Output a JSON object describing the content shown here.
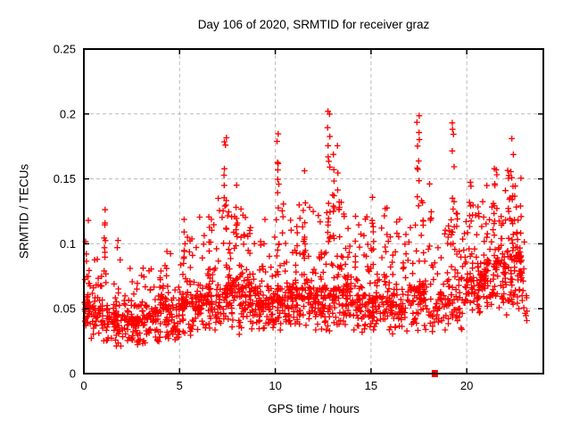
{
  "chart_data": {
    "type": "scatter",
    "title": "Day 106 of 2020, SRMTID for receiver graz",
    "xlabel": "GPS time / hours",
    "ylabel": "SRMTID / TECUs",
    "xlim": [
      0,
      24
    ],
    "ylim": [
      0,
      0.25
    ],
    "xticks": [
      {
        "v": 0,
        "label": "0"
      },
      {
        "v": 5,
        "label": "5"
      },
      {
        "v": 10,
        "label": "10"
      },
      {
        "v": 15,
        "label": "15"
      },
      {
        "v": 20,
        "label": "20"
      }
    ],
    "yticks": [
      {
        "v": 0,
        "label": "0"
      },
      {
        "v": 0.05,
        "label": "0.05"
      },
      {
        "v": 0.1,
        "label": "0.1"
      },
      {
        "v": 0.15,
        "label": "0.15"
      },
      {
        "v": 0.2,
        "label": "0.2"
      },
      {
        "v": 0.25,
        "label": "0.25"
      }
    ],
    "grid": true,
    "legend": "none",
    "marker": "plus",
    "marker_color": "#ff0000",
    "grid_color": "#bbbbbb",
    "border_color": "#000000",
    "background_color": "#ffffff",
    "seed": 2020106,
    "bands": [
      [
        0,
        0.3,
        45,
        0.03,
        0.055,
        0.118
      ],
      [
        0.3,
        1,
        55,
        0.025,
        0.05,
        0.09
      ],
      [
        1,
        2,
        75,
        0.02,
        0.045,
        0.105
      ],
      [
        2,
        3,
        80,
        0.02,
        0.042,
        0.085
      ],
      [
        3,
        4,
        85,
        0.02,
        0.048,
        0.09
      ],
      [
        4,
        5,
        80,
        0.025,
        0.052,
        0.1
      ],
      [
        5,
        6,
        85,
        0.028,
        0.055,
        0.11
      ],
      [
        6,
        7,
        85,
        0.032,
        0.06,
        0.122
      ],
      [
        7,
        8,
        90,
        0.035,
        0.065,
        0.14
      ],
      [
        8,
        9,
        90,
        0.03,
        0.065,
        0.133
      ],
      [
        9,
        10,
        85,
        0.028,
        0.058,
        0.12
      ],
      [
        10,
        11,
        90,
        0.032,
        0.065,
        0.135
      ],
      [
        11,
        12,
        90,
        0.035,
        0.065,
        0.13
      ],
      [
        12,
        13,
        90,
        0.03,
        0.06,
        0.13
      ],
      [
        13,
        14,
        90,
        0.035,
        0.065,
        0.133
      ],
      [
        14,
        15,
        80,
        0.03,
        0.06,
        0.125
      ],
      [
        15,
        16,
        80,
        0.03,
        0.058,
        0.128
      ],
      [
        16,
        17,
        80,
        0.027,
        0.058,
        0.12
      ],
      [
        17,
        18,
        80,
        0.032,
        0.065,
        0.135
      ],
      [
        18,
        19,
        55,
        0.028,
        0.06,
        0.12
      ],
      [
        19,
        20,
        80,
        0.032,
        0.063,
        0.13
      ],
      [
        20,
        21,
        90,
        0.045,
        0.075,
        0.14
      ],
      [
        21,
        22,
        90,
        0.05,
        0.085,
        0.15
      ],
      [
        22,
        22.9,
        90,
        0.045,
        0.09,
        0.16
      ],
      [
        22.9,
        23.15,
        12,
        0.03,
        0.06,
        0.105
      ]
    ],
    "spikes": [
      [
        1.1,
        0.15,
        7,
        0.08,
        0.134
      ],
      [
        5.2,
        0.12,
        6,
        0.08,
        0.12
      ],
      [
        7.35,
        0.2,
        13,
        0.09,
        0.185
      ],
      [
        8.0,
        0.15,
        8,
        0.09,
        0.155
      ],
      [
        10.1,
        0.18,
        13,
        0.09,
        0.19
      ],
      [
        11.5,
        0.15,
        8,
        0.09,
        0.16
      ],
      [
        12.8,
        0.15,
        12,
        0.1,
        0.21
      ],
      [
        13.05,
        0.12,
        8,
        0.1,
        0.2
      ],
      [
        13.3,
        0.12,
        6,
        0.1,
        0.185
      ],
      [
        15.1,
        0.12,
        6,
        0.09,
        0.156
      ],
      [
        17.45,
        0.15,
        10,
        0.1,
        0.2
      ],
      [
        18.1,
        0.1,
        5,
        0.1,
        0.162
      ],
      [
        19.3,
        0.12,
        9,
        0.1,
        0.198
      ],
      [
        20.15,
        0.15,
        7,
        0.09,
        0.15
      ],
      [
        21.5,
        0.15,
        7,
        0.1,
        0.168
      ],
      [
        22.3,
        0.3,
        14,
        0.1,
        0.186
      ],
      [
        22.6,
        0.15,
        8,
        0.09,
        0.168
      ]
    ],
    "special_points": [
      {
        "x": 18.33,
        "y": 0.0,
        "marker": "filled-square"
      }
    ]
  }
}
